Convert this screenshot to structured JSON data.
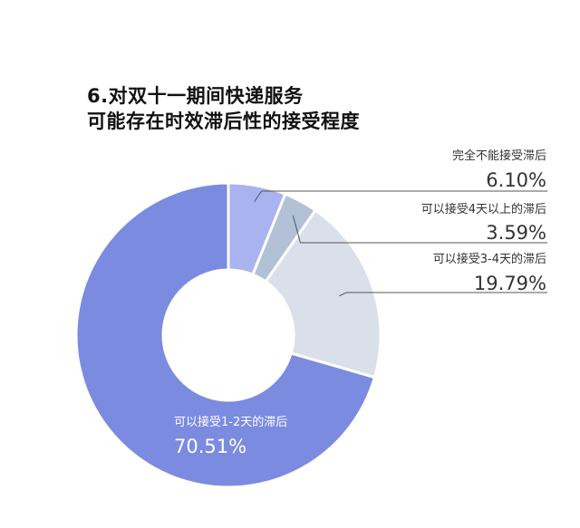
{
  "chart_data": {
    "type": "pie",
    "variant": "donut",
    "title_lines": [
      "6.对双十一期间快递服务",
      "可能存在时效滞后性的接受程度"
    ],
    "slices": [
      {
        "label": "完全不能接受滞后",
        "value": 6.1,
        "value_label": "6.10%",
        "color": "#a9b3f0"
      },
      {
        "label": "可以接受4天以上的滞后",
        "value": 3.59,
        "value_label": "3.59%",
        "color": "#b2c1d6"
      },
      {
        "label": "可以接受3-4天的滞后",
        "value": 19.79,
        "value_label": "19.79%",
        "color": "#d9e0ea"
      },
      {
        "label": "可以接受1-2天的滞后",
        "value": 70.51,
        "value_label": "70.51%",
        "color": "#7b8be0"
      }
    ],
    "start_angle_deg": 0,
    "direction": "clockwise",
    "legend": "callout-right"
  }
}
